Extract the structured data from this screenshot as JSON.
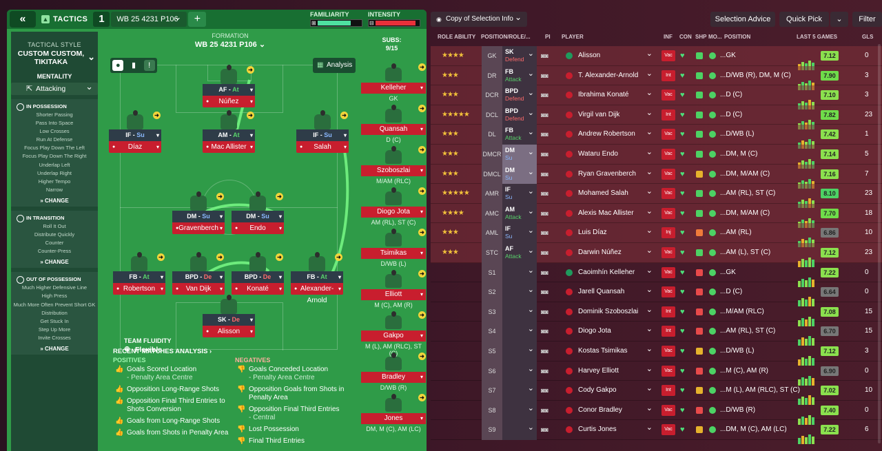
{
  "topbar": {
    "back": "«",
    "tactics_label": "TACTICS",
    "slot": "1",
    "formation_select": "WB 25  4231 P106",
    "add": "+",
    "familiarity_label": "FAMILIARITY",
    "intensity_label": "INTENSITY",
    "familiarity_value": 0.75,
    "intensity_value": 0.9
  },
  "sidebar": {
    "style_label": "TACTICAL STYLE",
    "style_value": "CUSTOM CUSTOM, TIKITAKA",
    "mentality_label": "MENTALITY",
    "mentality_value": "Attacking",
    "in_possession": {
      "title": "IN POSSESSION",
      "items": [
        "Shorter Passing",
        "Pass Into Space",
        "Low Crosses",
        "Run At Defense",
        "Focus Play Down The Left",
        "Focus Play Down The Right",
        "Underlap Left",
        "Underlap Right",
        "Higher Tempo",
        "Narrow"
      ],
      "change": "CHANGE"
    },
    "in_transition": {
      "title": "IN TRANSITION",
      "items": [
        "Roll It Out",
        "Distribute Quickly",
        "Counter",
        "Counter-Press"
      ],
      "change": "CHANGE"
    },
    "out_of_possession": {
      "title": "OUT OF POSSESSION",
      "items": [
        "Much Higher Defensive Line",
        "High Press",
        "Much More Often Prevent Short GK Distribution",
        "Get Stuck In",
        "Step Up More",
        "Invite Crosses"
      ],
      "change": "CHANGE"
    }
  },
  "pitch": {
    "formation_label": "FORMATION",
    "formation_name": "WB 25  4231 P106",
    "analysis_btn": "Analysis",
    "team_fluidity_label": "TEAM FLUIDITY",
    "team_fluidity_value": "Flexible",
    "players": [
      {
        "role": "AF",
        "duty": "At",
        "name": "Núñez"
      },
      {
        "role": "IF",
        "duty": "Su",
        "name": "Díaz"
      },
      {
        "role": "AM",
        "duty": "At",
        "name": "Mac Allister"
      },
      {
        "role": "IF",
        "duty": "Su",
        "name": "Salah"
      },
      {
        "role": "DM",
        "duty": "Su",
        "name": "Gravenberch"
      },
      {
        "role": "DM",
        "duty": "Su",
        "name": "Endo"
      },
      {
        "role": "FB",
        "duty": "At",
        "name": "Robertson"
      },
      {
        "role": "BPD",
        "duty": "De",
        "name": "Van Dijk"
      },
      {
        "role": "BPD",
        "duty": "De",
        "name": "Konaté"
      },
      {
        "role": "FB",
        "duty": "At",
        "name": "Alexander-Arnold"
      },
      {
        "role": "SK",
        "duty": "De",
        "name": "Alisson"
      }
    ]
  },
  "subs": {
    "label": "SUBS:",
    "count": "9/15",
    "players": [
      {
        "name": "Kelleher",
        "pos": "GK"
      },
      {
        "name": "Quansah",
        "pos": "D (C)"
      },
      {
        "name": "Szoboszlai",
        "pos": "M/AM (RLC)"
      },
      {
        "name": "Diogo Jota",
        "pos": "AM (RL), ST (C)"
      },
      {
        "name": "Tsimikas",
        "pos": "D/WB (L)"
      },
      {
        "name": "Elliott",
        "pos": "M (C), AM (R)"
      },
      {
        "name": "Gakpo",
        "pos": "M (L), AM (RLC), ST (C)"
      },
      {
        "name": "Bradley",
        "pos": "D/WB (R)"
      },
      {
        "name": "Jones",
        "pos": "DM, M (C), AM (LC)"
      }
    ]
  },
  "analysis": {
    "title": "RECENT MATCHES ANALYSIS ›",
    "positives_label": "POSITIVES",
    "negatives_label": "NEGATIVES",
    "positives": [
      {
        "text": "Goals Scored Location",
        "sub": "- Penalty Area Centre"
      },
      {
        "text": "Opposition Long-Range Shots",
        "sub": ""
      },
      {
        "text": "Opposition Final Third Entries to Shots Conversion",
        "sub": ""
      },
      {
        "text": "Goals from Long-Range Shots",
        "sub": ""
      },
      {
        "text": "Goals from Shots in Penalty Area",
        "sub": ""
      }
    ],
    "negatives": [
      {
        "text": "Goals Conceded Location",
        "sub": "- Penalty Area Centre"
      },
      {
        "text": "Opposition Goals from Shots in Penalty Area",
        "sub": ""
      },
      {
        "text": "Opposition Final Third Entries",
        "sub": "- Central"
      },
      {
        "text": "Lost Possession",
        "sub": ""
      },
      {
        "text": "Final Third Entries",
        "sub": ""
      }
    ]
  },
  "right": {
    "copy_btn": "Copy of Selection Info",
    "selection_advice": "Selection Advice",
    "quick_pick": "Quick Pick",
    "filter": "Filter",
    "headers": {
      "role_ability": "ROLE ABILITY",
      "position_role": "POSITION/ROLE/...",
      "pi": "PI",
      "player": "PLAYER",
      "inf": "INF",
      "con": "CON",
      "shp": "SHP",
      "mo": "MO...",
      "position": "POSITION",
      "last5": "LAST 5 GAMES",
      "gls": "GLS"
    },
    "rows": [
      {
        "stars": "★★★★",
        "pos": "GK",
        "role": "SK",
        "duty": "Defend",
        "duty_class": "de",
        "name": "Alisson",
        "inf": "Vac",
        "shp": "#4dd264",
        "position": "...GK",
        "rating": "7.12",
        "rating_color": "#8be04e",
        "gls": "0",
        "gk": true
      },
      {
        "stars": "★★★",
        "pos": "DR",
        "role": "FB",
        "duty": "Attack",
        "duty_class": "at",
        "name": "T. Alexander-Arnold",
        "inf": "Int",
        "shp": "#4dd264",
        "position": "...D/WB (R), DM, M (C)",
        "rating": "7.90",
        "rating_color": "#6fdc4a",
        "gls": "3"
      },
      {
        "stars": "★★★",
        "pos": "DCR",
        "role": "BPD",
        "duty": "Defend",
        "duty_class": "de",
        "name": "Ibrahima Konaté",
        "inf": "Vac",
        "shp": "#4dd264",
        "position": "...D (C)",
        "rating": "7.10",
        "rating_color": "#8be04e",
        "gls": "3"
      },
      {
        "stars": "★★★★★",
        "pos": "DCL",
        "role": "BPD",
        "duty": "Defend",
        "duty_class": "de",
        "name": "Virgil van Dijk",
        "inf": "Int",
        "shp": "#4dd264",
        "position": "...D (C)",
        "rating": "7.82",
        "rating_color": "#6fdc4a",
        "gls": "23"
      },
      {
        "stars": "★★★",
        "pos": "DL",
        "role": "FB",
        "duty": "Attack",
        "duty_class": "at",
        "name": "Andrew Robertson",
        "inf": "Vac",
        "shp": "#4dd264",
        "position": "...D/WB (L)",
        "rating": "7.42",
        "rating_color": "#8be04e",
        "gls": "1"
      },
      {
        "stars": "★★★",
        "pos": "DMCR",
        "role": "DM",
        "duty": "Su",
        "duty_class": "su",
        "name": "Wataru Endo",
        "inf": "Vac",
        "shp": "#4dd264",
        "position": "...DM, M (C)",
        "rating": "7.14",
        "rating_color": "#8be04e",
        "gls": "5",
        "dm": true
      },
      {
        "stars": "★★★",
        "pos": "DMCL",
        "role": "DM",
        "duty": "Su",
        "duty_class": "su",
        "name": "Ryan Gravenberch",
        "inf": "Vac",
        "shp": "#e6b22c",
        "position": "...DM, M/AM (C)",
        "rating": "7.16",
        "rating_color": "#8be04e",
        "gls": "7",
        "dm": true
      },
      {
        "stars": "★★★★★",
        "pos": "AMR",
        "role": "IF",
        "duty": "Su",
        "duty_class": "su",
        "name": "Mohamed Salah",
        "inf": "Vac",
        "shp": "#4dd264",
        "position": "...AM (RL), ST (C)",
        "rating": "8.10",
        "rating_color": "#4dd264",
        "gls": "23"
      },
      {
        "stars": "★★★★",
        "pos": "AMC",
        "role": "AM",
        "duty": "Attack",
        "duty_class": "at",
        "name": "Alexis Mac Allister",
        "inf": "Vac",
        "shp": "#4dd264",
        "position": "...DM, M/AM (C)",
        "rating": "7.70",
        "rating_color": "#6fdc4a",
        "gls": "18"
      },
      {
        "stars": "★★★",
        "pos": "AML",
        "role": "IF",
        "duty": "Su",
        "duty_class": "su",
        "name": "Luis Díaz",
        "inf": "Inj",
        "shp": "#f07b3a",
        "position": "...AM (RL)",
        "rating": "6.86",
        "rating_color": "#777",
        "gls": "10"
      },
      {
        "stars": "★★★",
        "pos": "STC",
        "role": "AF",
        "duty": "Attack",
        "duty_class": "at",
        "name": "Darwin Núñez",
        "inf": "Vac",
        "shp": "#4dd264",
        "position": "...AM (L), ST (C)",
        "rating": "7.12",
        "rating_color": "#8be04e",
        "gls": "23"
      },
      {
        "stars": "",
        "pos": "S1",
        "role": "",
        "duty": "",
        "duty_class": "",
        "name": "Caoimhín Kelleher",
        "inf": "Vac",
        "shp": "#e84a4a",
        "position": "...GK",
        "rating": "7.22",
        "rating_color": "#8be04e",
        "gls": "0",
        "gk": true
      },
      {
        "stars": "",
        "pos": "S2",
        "role": "",
        "duty": "",
        "duty_class": "",
        "name": "Jarell Quansah",
        "inf": "Vac",
        "shp": "#e84a4a",
        "position": "...D (C)",
        "rating": "6.64",
        "rating_color": "#777",
        "gls": "0"
      },
      {
        "stars": "",
        "pos": "S3",
        "role": "",
        "duty": "",
        "duty_class": "",
        "name": "Dominik Szoboszlai",
        "inf": "Int",
        "shp": "#e84a4a",
        "position": "...M/AM (RLC)",
        "rating": "7.08",
        "rating_color": "#8be04e",
        "gls": "15"
      },
      {
        "stars": "",
        "pos": "S4",
        "role": "",
        "duty": "",
        "duty_class": "",
        "name": "Diogo Jota",
        "inf": "Int",
        "shp": "#e84a4a",
        "position": "...AM (RL), ST (C)",
        "rating": "6.70",
        "rating_color": "#777",
        "gls": "15"
      },
      {
        "stars": "",
        "pos": "S5",
        "role": "",
        "duty": "",
        "duty_class": "",
        "name": "Kostas Tsimikas",
        "inf": "Vac",
        "shp": "#e6b22c",
        "position": "...D/WB (L)",
        "rating": "7.12",
        "rating_color": "#8be04e",
        "gls": "3"
      },
      {
        "stars": "",
        "pos": "S6",
        "role": "",
        "duty": "",
        "duty_class": "",
        "name": "Harvey Elliott",
        "inf": "Vac",
        "shp": "#e84a4a",
        "position": "...M (C), AM (R)",
        "rating": "6.90",
        "rating_color": "#777",
        "gls": "0"
      },
      {
        "stars": "",
        "pos": "S7",
        "role": "",
        "duty": "",
        "duty_class": "",
        "name": "Cody Gakpo",
        "inf": "Int",
        "shp": "#e6b22c",
        "position": "...M (L), AM (RLC), ST (C)",
        "rating": "7.02",
        "rating_color": "#8be04e",
        "gls": "10"
      },
      {
        "stars": "",
        "pos": "S8",
        "role": "",
        "duty": "",
        "duty_class": "",
        "name": "Conor Bradley",
        "inf": "Vac",
        "shp": "#e84a4a",
        "position": "...D/WB (R)",
        "rating": "7.40",
        "rating_color": "#8be04e",
        "gls": "0"
      },
      {
        "stars": "",
        "pos": "S9",
        "role": "",
        "duty": "",
        "duty_class": "",
        "name": "Curtis Jones",
        "inf": "Vac",
        "shp": "#e6b22c",
        "position": "...DM, M (C), AM (LC)",
        "rating": "7.22",
        "rating_color": "#8be04e",
        "gls": "6"
      }
    ]
  }
}
